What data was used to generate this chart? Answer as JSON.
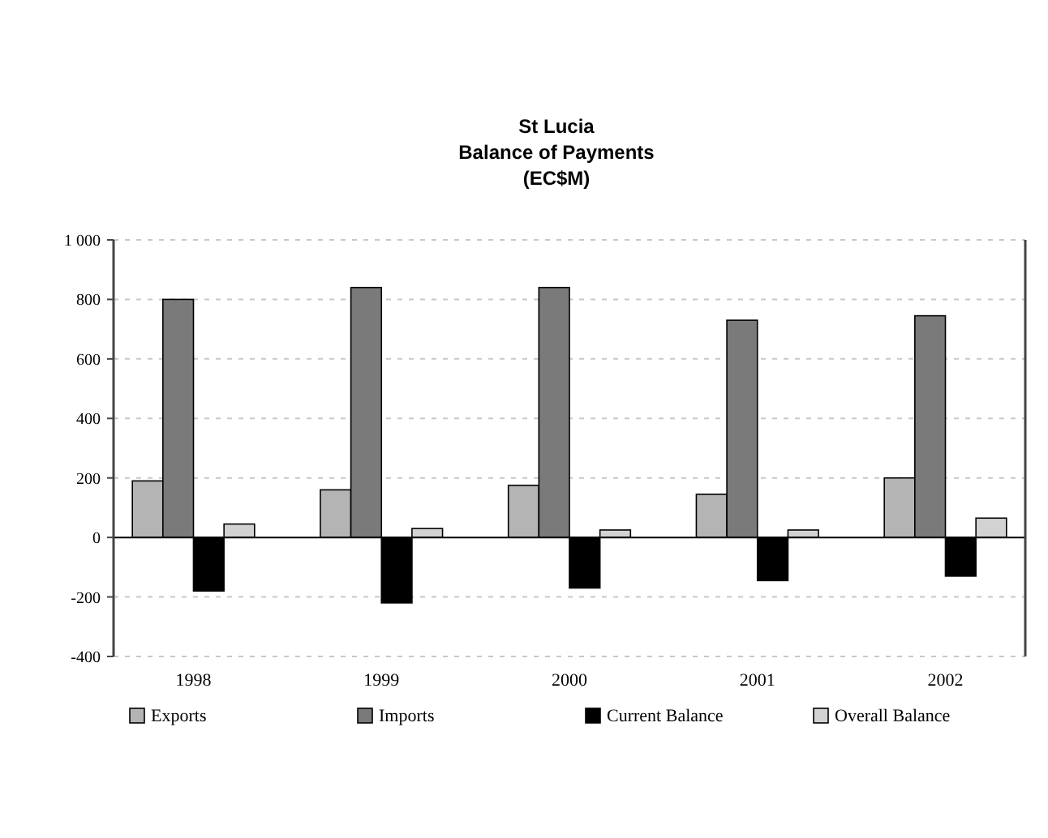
{
  "chart_data": {
    "type": "bar",
    "title": "St Lucia\nBalance of Payments\n(EC$M)",
    "categories": [
      "1998",
      "1999",
      "2000",
      "2001",
      "2002"
    ],
    "series": [
      {
        "name": "Exports",
        "color": "#b4b4b4",
        "values": [
          190,
          160,
          175,
          145,
          200
        ]
      },
      {
        "name": "Imports",
        "color": "#7a7a7a",
        "values": [
          800,
          840,
          840,
          730,
          745
        ]
      },
      {
        "name": "Current Balance",
        "color": "#000000",
        "values": [
          -180,
          -220,
          -170,
          -145,
          -130
        ]
      },
      {
        "name": "Overall Balance",
        "color": "#d2d2d2",
        "values": [
          45,
          30,
          25,
          25,
          65
        ]
      }
    ],
    "ylim": [
      -400,
      1000
    ],
    "yticks": [
      -400,
      -200,
      0,
      200,
      400,
      600,
      800,
      {
        "value": 1000,
        "label": "1 000"
      }
    ],
    "grid": "y",
    "legend": "bottom"
  }
}
